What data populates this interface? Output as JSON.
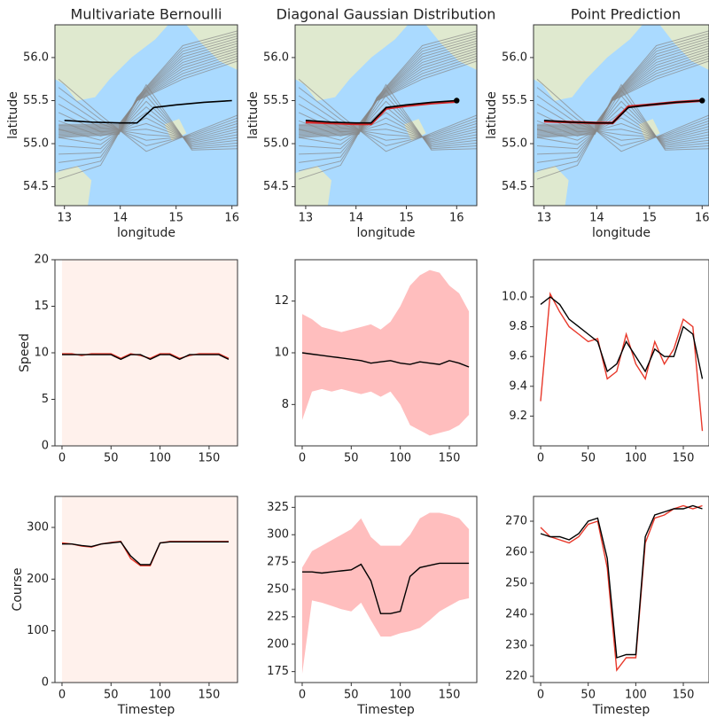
{
  "chart_data": [
    {
      "type": "line",
      "title": "Multivariate Bernoulli",
      "xlabel": "longitude",
      "ylabel": "latitude",
      "map": true,
      "xlim": [
        12.83,
        16.1
      ],
      "ylim": [
        54.28,
        56.38
      ],
      "xticks": [
        13,
        14,
        15,
        16
      ],
      "yticks": [
        {
          "value": 54.5,
          "label": "54.5"
        },
        {
          "value": 55,
          "label": "55.0"
        },
        {
          "value": 55.5,
          "label": "55.5"
        },
        {
          "value": 56,
          "label": "56.0"
        }
      ],
      "x": [
        13.0,
        13.5,
        14.0,
        14.3,
        14.6,
        15.0,
        15.5,
        16.0
      ],
      "series": [
        {
          "color": "#000000",
          "values": [
            55.27,
            55.25,
            55.24,
            55.24,
            55.42,
            55.45,
            55.48,
            55.5
          ]
        }
      ]
    },
    {
      "type": "line",
      "title": "Diagonal Gaussian Distribution",
      "xlabel": "longitude",
      "ylabel": "latitude",
      "map": true,
      "end_marker": true,
      "xlim": [
        12.79,
        16.4
      ],
      "ylim": [
        54.28,
        56.38
      ],
      "xticks": [
        13,
        14,
        15,
        16
      ],
      "yticks": [
        {
          "value": 54.5,
          "label": "54.5"
        },
        {
          "value": 55,
          "label": "55.0"
        },
        {
          "value": 55.5,
          "label": "55.5"
        },
        {
          "value": 56,
          "label": "56.0"
        }
      ],
      "x": [
        13.0,
        13.5,
        14.0,
        14.3,
        14.6,
        15.0,
        15.5,
        16.0
      ],
      "series": [
        {
          "color": "#d62728",
          "values": [
            55.25,
            55.24,
            55.23,
            55.23,
            55.41,
            55.44,
            55.47,
            55.49
          ]
        },
        {
          "color": "#000000",
          "values": [
            55.27,
            55.25,
            55.24,
            55.24,
            55.42,
            55.45,
            55.48,
            55.5
          ]
        }
      ]
    },
    {
      "type": "line",
      "title": "Point Prediction",
      "xlabel": "longitude",
      "ylabel": "latitude",
      "map": true,
      "end_marker": true,
      "xlim": [
        12.8,
        16.13
      ],
      "ylim": [
        54.28,
        56.38
      ],
      "xticks": [
        13,
        14,
        15,
        16
      ],
      "yticks": [
        {
          "value": 54.5,
          "label": "54.5"
        },
        {
          "value": 55,
          "label": "55.0"
        },
        {
          "value": 55.5,
          "label": "55.5"
        },
        {
          "value": 56,
          "label": "56.0"
        }
      ],
      "x": [
        13.0,
        13.5,
        14.0,
        14.3,
        14.6,
        15.0,
        15.5,
        16.0
      ],
      "series": [
        {
          "color": "#d62728",
          "values": [
            55.26,
            55.25,
            55.24,
            55.24,
            55.43,
            55.45,
            55.48,
            55.5
          ]
        },
        {
          "color": "#000000",
          "values": [
            55.27,
            55.25,
            55.24,
            55.24,
            55.42,
            55.45,
            55.48,
            55.5
          ]
        }
      ]
    },
    {
      "type": "line",
      "ylabel": "Speed",
      "background_color": "#fff1ec",
      "xlim": [
        -7.2,
        179
      ],
      "ylim": [
        0,
        20
      ],
      "xticks": [
        0,
        50,
        100,
        150
      ],
      "yticks": [
        0,
        5,
        10,
        15,
        20
      ],
      "x": [
        0,
        10,
        20,
        30,
        40,
        50,
        60,
        70,
        80,
        90,
        100,
        110,
        120,
        130,
        140,
        150,
        160,
        170
      ],
      "series": [
        {
          "color": "#e8382a",
          "values": [
            9.9,
            9.9,
            9.7,
            9.9,
            9.9,
            9.9,
            9.4,
            9.9,
            9.7,
            9.4,
            9.9,
            9.9,
            9.4,
            9.7,
            9.9,
            9.9,
            9.9,
            9.4
          ]
        },
        {
          "color": "#000000",
          "values": [
            9.8,
            9.8,
            9.8,
            9.8,
            9.8,
            9.8,
            9.3,
            9.8,
            9.8,
            9.3,
            9.8,
            9.8,
            9.3,
            9.8,
            9.8,
            9.8,
            9.8,
            9.3
          ]
        }
      ]
    },
    {
      "type": "line",
      "xlim": [
        -7.2,
        178
      ],
      "ylim": [
        6.4,
        13.6
      ],
      "xticks": [
        0,
        50,
        100,
        150
      ],
      "yticks": [
        8,
        10,
        12
      ],
      "x": [
        0,
        10,
        20,
        30,
        40,
        50,
        60,
        70,
        80,
        90,
        100,
        110,
        120,
        130,
        140,
        150,
        160,
        170
      ],
      "bands": [
        {
          "color": "#ffb3b3",
          "lower": [
            7.4,
            8.5,
            8.6,
            8.5,
            8.6,
            8.5,
            8.4,
            8.5,
            8.3,
            8.5,
            8.0,
            7.2,
            7.0,
            6.8,
            6.9,
            7.0,
            7.2,
            7.6
          ],
          "upper": [
            11.5,
            11.3,
            11.0,
            10.9,
            10.8,
            10.9,
            11.0,
            11.1,
            10.9,
            11.2,
            11.8,
            12.6,
            13.0,
            13.2,
            13.1,
            12.6,
            12.3,
            11.6
          ]
        }
      ],
      "series": [
        {
          "color": "#000000",
          "values": [
            10,
            9.95,
            9.9,
            9.85,
            9.8,
            9.75,
            9.7,
            9.6,
            9.65,
            9.7,
            9.6,
            9.55,
            9.65,
            9.6,
            9.55,
            9.7,
            9.6,
            9.45
          ]
        }
      ]
    },
    {
      "type": "line",
      "xlim": [
        -7.5,
        177
      ],
      "ylim": [
        9.0,
        10.25
      ],
      "xticks": [
        0,
        50,
        100,
        150
      ],
      "yticks": [
        9.2,
        9.4,
        9.6,
        9.8,
        {
          "value": 10,
          "label": "10.0"
        }
      ],
      "x": [
        0,
        10,
        20,
        30,
        40,
        50,
        60,
        70,
        80,
        90,
        100,
        110,
        120,
        130,
        140,
        150,
        160,
        170
      ],
      "series": [
        {
          "color": "#e8382a",
          "values": [
            9.3,
            10.02,
            9.9,
            9.8,
            9.75,
            9.7,
            9.72,
            9.45,
            9.5,
            9.75,
            9.55,
            9.45,
            9.7,
            9.55,
            9.65,
            9.85,
            9.8,
            9.1
          ]
        },
        {
          "color": "#000000",
          "values": [
            9.95,
            10.0,
            9.95,
            9.85,
            9.8,
            9.75,
            9.7,
            9.5,
            9.55,
            9.7,
            9.6,
            9.5,
            9.65,
            9.6,
            9.6,
            9.8,
            9.75,
            9.45
          ]
        }
      ]
    },
    {
      "type": "line",
      "xlabel": "Timestep",
      "ylabel": "Course",
      "background_color": "#fff1ec",
      "xlim": [
        -7.2,
        179
      ],
      "ylim": [
        0,
        360
      ],
      "xticks": [
        0,
        50,
        100,
        150
      ],
      "yticks": [
        0,
        100,
        200,
        300
      ],
      "x": [
        0,
        10,
        20,
        30,
        40,
        50,
        60,
        70,
        80,
        90,
        100,
        110,
        120,
        130,
        140,
        150,
        160,
        170
      ],
      "series": [
        {
          "color": "#e8382a",
          "values": [
            270,
            268,
            264,
            262,
            268,
            271,
            273,
            240,
            226,
            226,
            270,
            273,
            273,
            273,
            273,
            273,
            273,
            273
          ]
        },
        {
          "color": "#000000",
          "values": [
            268,
            268,
            265,
            263,
            268,
            270,
            272,
            245,
            228,
            228,
            270,
            272,
            272,
            272,
            272,
            272,
            272,
            272
          ]
        }
      ]
    },
    {
      "type": "line",
      "xlabel": "Timestep",
      "xlim": [
        -7.2,
        178
      ],
      "ylim": [
        165,
        335
      ],
      "xticks": [
        0,
        50,
        100,
        150
      ],
      "yticks": [
        175,
        200,
        225,
        250,
        275,
        300,
        325
      ],
      "x": [
        0,
        10,
        20,
        30,
        40,
        50,
        60,
        70,
        80,
        90,
        100,
        110,
        120,
        130,
        140,
        150,
        160,
        170
      ],
      "bands": [
        {
          "color": "#ffb3b3",
          "lower": [
            173,
            240,
            238,
            235,
            232,
            230,
            238,
            222,
            207,
            207,
            210,
            212,
            215,
            222,
            230,
            235,
            240,
            242
          ],
          "upper": [
            270,
            285,
            290,
            295,
            300,
            305,
            315,
            298,
            290,
            290,
            290,
            300,
            315,
            320,
            320,
            318,
            315,
            305
          ]
        }
      ],
      "series": [
        {
          "color": "#000000",
          "values": [
            266,
            266,
            265,
            266,
            267,
            268,
            273,
            258,
            228,
            228,
            230,
            262,
            270,
            272,
            274,
            274,
            274,
            274
          ]
        }
      ]
    },
    {
      "type": "line",
      "xlabel": "Timestep",
      "xlim": [
        -7.5,
        177
      ],
      "ylim": [
        218,
        278
      ],
      "xticks": [
        0,
        50,
        100,
        150
      ],
      "yticks": [
        220,
        230,
        240,
        250,
        260,
        270
      ],
      "x": [
        0,
        10,
        20,
        30,
        40,
        50,
        60,
        70,
        80,
        90,
        100,
        110,
        120,
        130,
        140,
        150,
        160,
        170
      ],
      "series": [
        {
          "color": "#e8382a",
          "values": [
            268,
            265,
            264,
            263,
            265,
            269,
            270,
            255,
            222,
            226,
            226,
            263,
            271,
            272,
            274,
            275,
            274,
            275
          ]
        },
        {
          "color": "#000000",
          "values": [
            266,
            265,
            265,
            264,
            266,
            270,
            271,
            258,
            226,
            227,
            227,
            265,
            272,
            273,
            274,
            274,
            275,
            274
          ]
        }
      ]
    }
  ]
}
